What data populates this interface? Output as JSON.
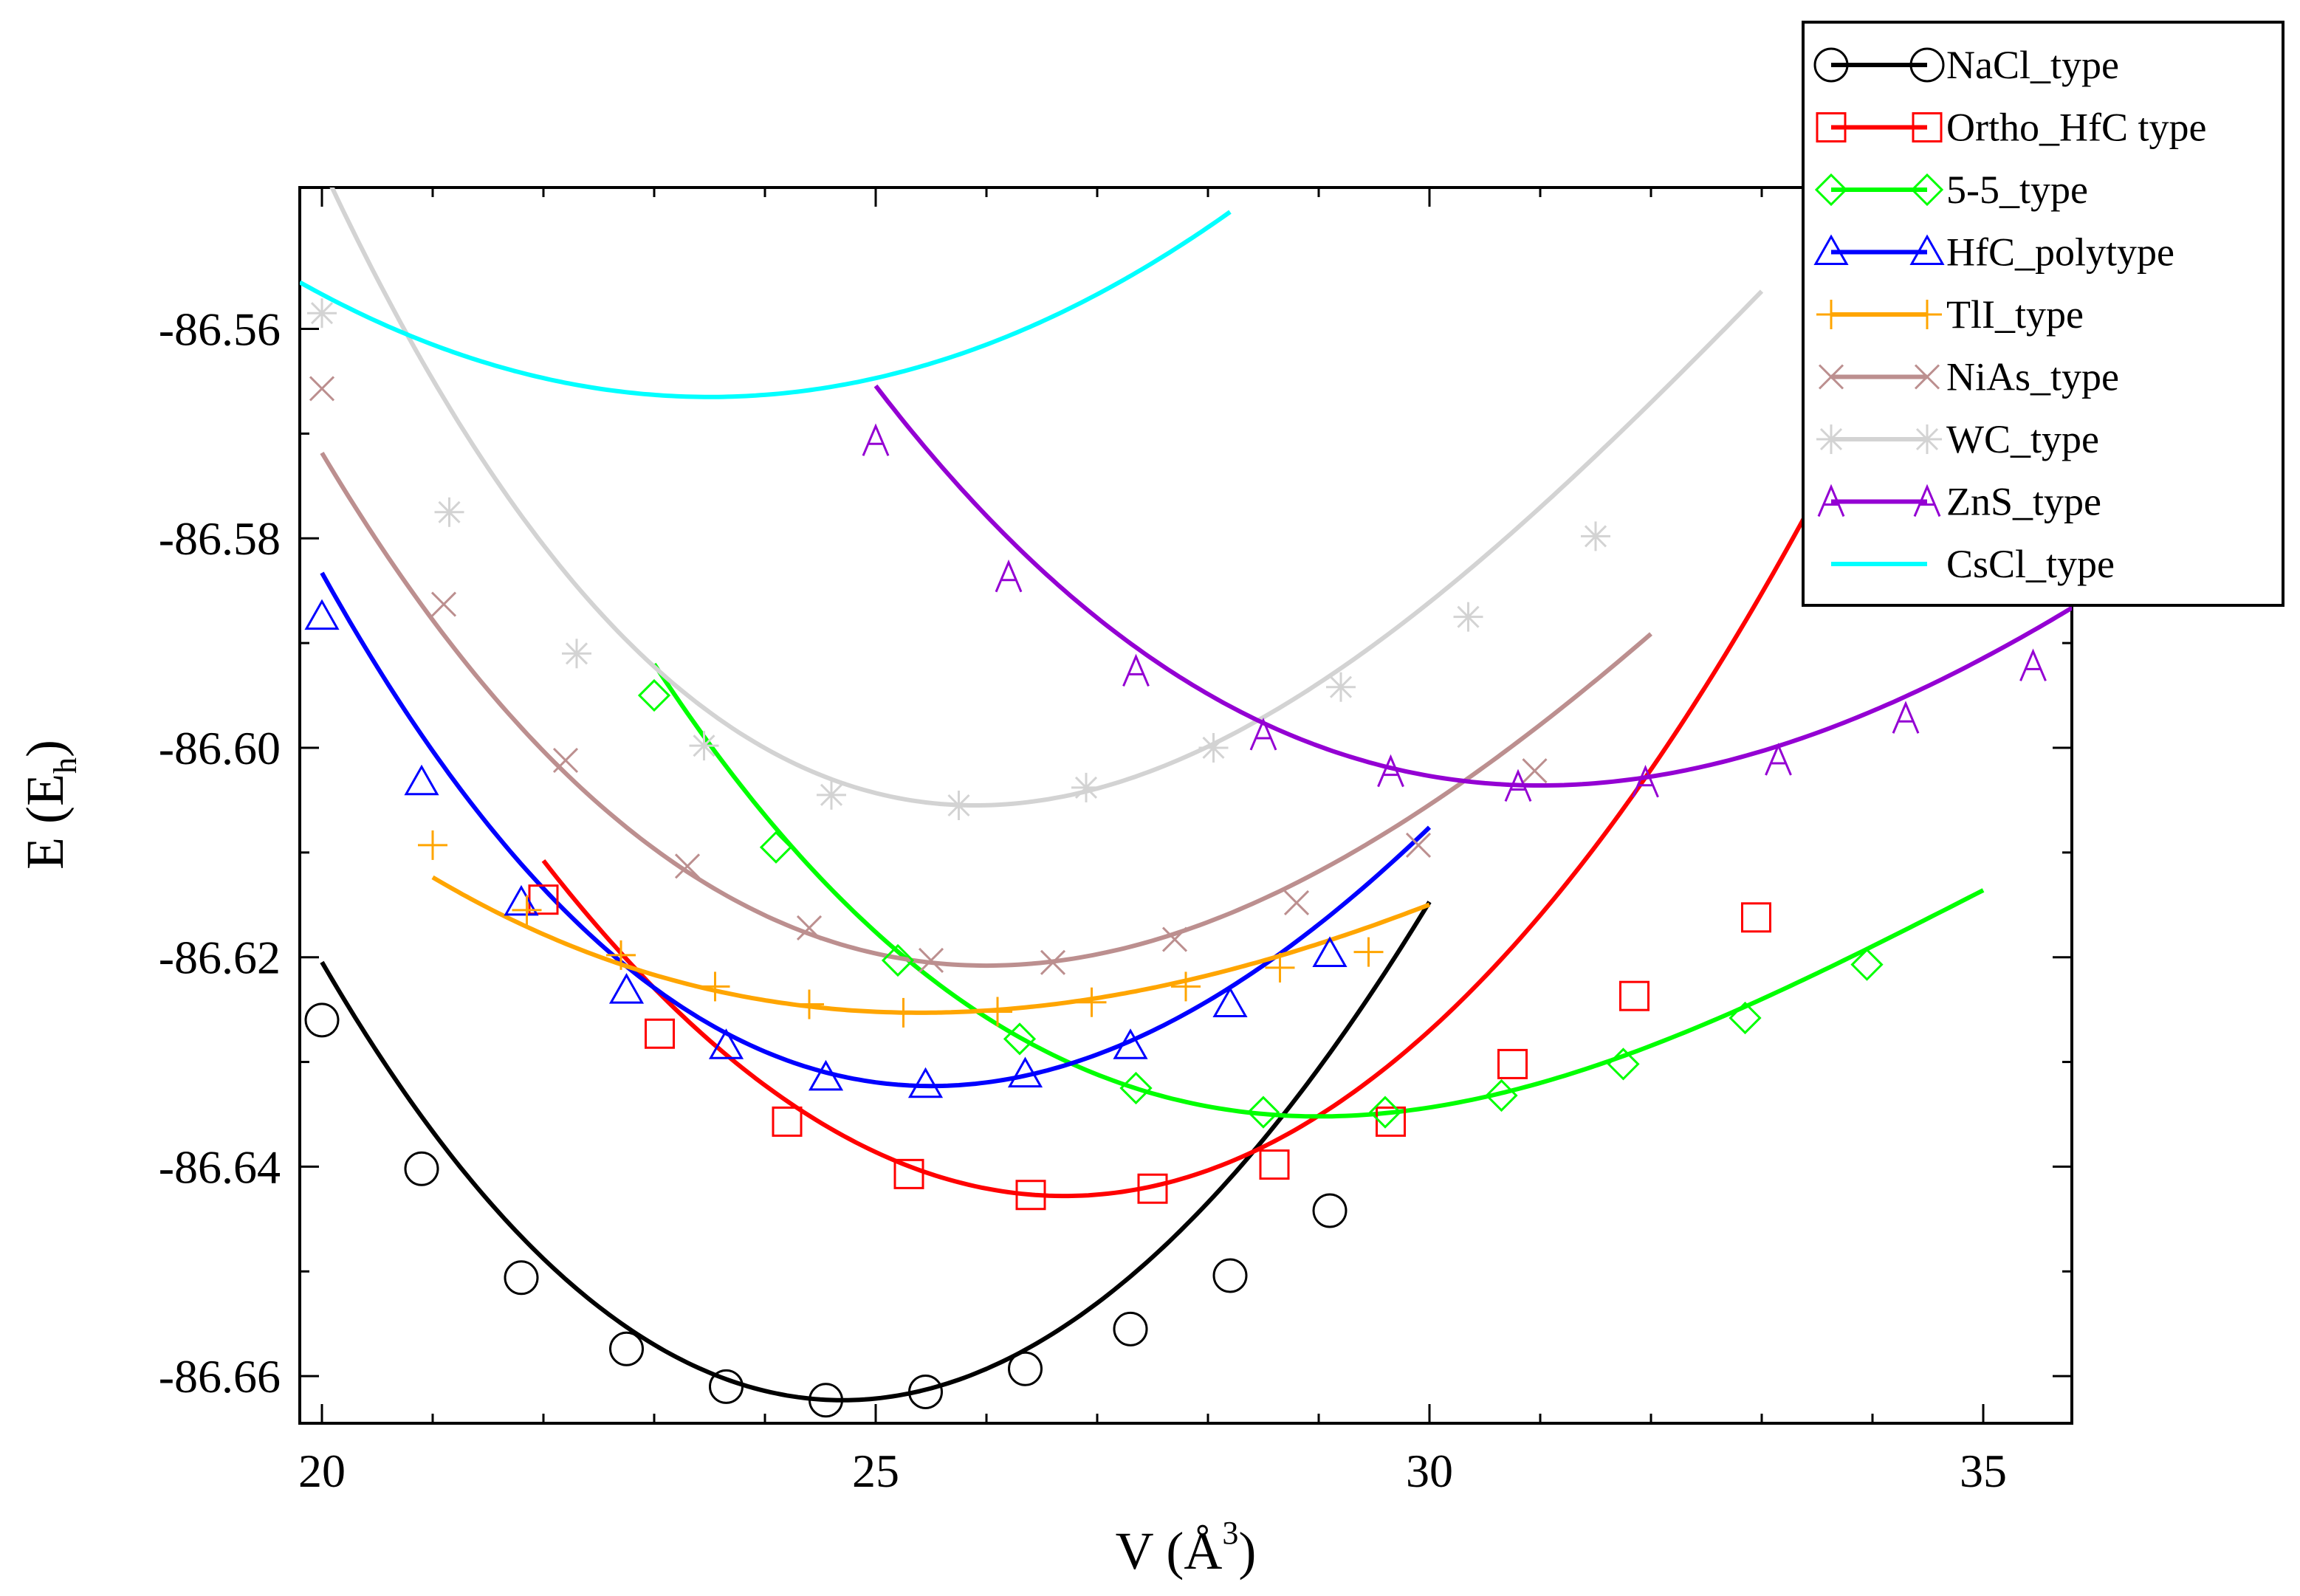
{
  "chart_data": {
    "type": "line",
    "title": "",
    "xlabel": "V (Å",
    "xlabel_sup": "3",
    "xlabel_close": ")",
    "ylabel": "E (E",
    "ylabel_sub": "h",
    "ylabel_close": ")",
    "xlim": [
      19.8,
      35.8
    ],
    "ylim": [
      -86.6645,
      -86.5465
    ],
    "xticks": [
      20,
      25,
      30,
      35
    ],
    "xtick_labels": [
      "20",
      "25",
      "30",
      "35"
    ],
    "yticks": [
      -86.66,
      -86.64,
      -86.62,
      -86.6,
      -86.58,
      -86.56
    ],
    "ytick_labels": [
      "-86.66",
      "-86.64",
      "-86.62",
      "-86.60",
      "-86.58",
      "-86.56"
    ],
    "legend_position": "top-right",
    "series": [
      {
        "name": "NaCl_type",
        "color": "#000000",
        "marker": "circle",
        "fit": {
          "x0": 24.7,
          "e0": -86.6623,
          "k": 0.0018,
          "c": -2e-05,
          "xmin": 20.0,
          "xmax": 30.0
        },
        "points": [
          [
            20.0,
            -86.626
          ],
          [
            20.9,
            -86.6402
          ],
          [
            21.8,
            -86.6506
          ],
          [
            22.75,
            -86.6574
          ],
          [
            23.65,
            -86.661
          ],
          [
            24.55,
            -86.6623
          ],
          [
            25.45,
            -86.6615
          ],
          [
            26.35,
            -86.6593
          ],
          [
            27.3,
            -86.6555
          ],
          [
            28.2,
            -86.6504
          ],
          [
            29.1,
            -86.6442
          ]
        ]
      },
      {
        "name": "Ortho_HfC type",
        "color": "#ff0000",
        "marker": "square",
        "fit": {
          "x0": 26.7,
          "e0": -86.6428,
          "k": 0.00145,
          "c": 0.0,
          "xmin": 22.0,
          "xmax": 34.0
        },
        "points": [
          [
            22.0,
            -86.6145
          ],
          [
            23.05,
            -86.6273
          ],
          [
            24.2,
            -86.6357
          ],
          [
            25.3,
            -86.6407
          ],
          [
            26.4,
            -86.6427
          ],
          [
            27.5,
            -86.6421
          ],
          [
            28.6,
            -86.6398
          ],
          [
            29.65,
            -86.6357
          ],
          [
            30.75,
            -86.6302
          ],
          [
            31.85,
            -86.6237
          ],
          [
            32.95,
            -86.6162
          ]
        ]
      },
      {
        "name": "5-5_type",
        "color": "#00ff00",
        "marker": "diamond",
        "fit": {
          "x0": 29.0,
          "e0": -86.6352,
          "k": 0.0009,
          "c": -5e-05,
          "xmin": 23.0,
          "xmax": 35.0
        },
        "points": [
          [
            23.0,
            -86.595
          ],
          [
            24.1,
            -86.6095
          ],
          [
            25.2,
            -86.6203
          ],
          [
            26.3,
            -86.6278
          ],
          [
            27.35,
            -86.6325
          ],
          [
            28.5,
            -86.6348
          ],
          [
            29.6,
            -86.6348
          ],
          [
            30.65,
            -86.6332
          ],
          [
            31.75,
            -86.6302
          ],
          [
            32.85,
            -86.6258
          ],
          [
            33.95,
            -86.6207
          ]
        ]
      },
      {
        "name": "HfC_polytype",
        "color": "#0000ff",
        "marker": "triangle",
        "fit": {
          "x0": 25.5,
          "e0": -86.6323,
          "k": 0.0014,
          "c": -4e-05,
          "xmin": 20.0,
          "xmax": 30.0
        },
        "points": [
          [
            20.0,
            -86.5875
          ],
          [
            20.9,
            -86.6033
          ],
          [
            21.8,
            -86.6148
          ],
          [
            22.75,
            -86.6232
          ],
          [
            23.65,
            -86.6285
          ],
          [
            24.55,
            -86.6315
          ],
          [
            25.45,
            -86.6322
          ],
          [
            26.35,
            -86.6312
          ],
          [
            27.3,
            -86.6285
          ],
          [
            28.2,
            -86.6245
          ],
          [
            29.1,
            -86.6197
          ]
        ]
      },
      {
        "name": "TlI_type",
        "color": "#ffa500",
        "marker": "plus",
        "fit": {
          "x0": 25.4,
          "e0": -86.6253,
          "k": 0.00058,
          "c": -2e-05,
          "xmin": 21.0,
          "xmax": 30.0
        },
        "points": [
          [
            21.0,
            -86.6093
          ],
          [
            21.85,
            -86.6155
          ],
          [
            22.7,
            -86.6198
          ],
          [
            23.55,
            -86.6228
          ],
          [
            24.4,
            -86.6245
          ],
          [
            25.25,
            -86.6253
          ],
          [
            26.1,
            -86.6252
          ],
          [
            26.95,
            -86.6243
          ],
          [
            27.8,
            -86.6228
          ],
          [
            28.65,
            -86.621
          ],
          [
            29.45,
            -86.6195
          ]
        ]
      },
      {
        "name": "NiAs_type",
        "color": "#bc8f8f",
        "marker": "cross",
        "fit": {
          "x0": 26.0,
          "e0": -86.6208,
          "k": 0.00112,
          "c": -4e-05,
          "xmin": 20.0,
          "xmax": 32.0
        },
        "points": [
          [
            20.0,
            -86.5657
          ],
          [
            21.1,
            -86.5863
          ],
          [
            22.2,
            -86.6012
          ],
          [
            23.3,
            -86.6113
          ],
          [
            24.4,
            -86.6172
          ],
          [
            25.5,
            -86.6203
          ],
          [
            26.6,
            -86.6205
          ],
          [
            27.7,
            -86.6183
          ],
          [
            28.8,
            -86.6148
          ],
          [
            29.9,
            -86.6093
          ],
          [
            30.95,
            -86.6022
          ]
        ]
      },
      {
        "name": "WC_type",
        "color": "#d3d3d3",
        "marker": "star",
        "fit": {
          "x0": 25.9,
          "e0": -86.6055,
          "k": 0.0014,
          "c": -6e-05,
          "xmin": 20.0,
          "xmax": 33.0
        },
        "points": [
          [
            20.0,
            -86.5585
          ],
          [
            21.15,
            -86.5775
          ],
          [
            22.3,
            -86.591
          ],
          [
            23.45,
            -86.5998
          ],
          [
            24.6,
            -86.6045
          ],
          [
            25.75,
            -86.6055
          ],
          [
            26.9,
            -86.6038
          ],
          [
            28.05,
            -86.6
          ],
          [
            29.2,
            -86.5942
          ],
          [
            30.35,
            -86.5875
          ],
          [
            31.5,
            -86.5798
          ]
        ]
      },
      {
        "name": "ZnS_type",
        "color": "#9400d3",
        "marker": "A",
        "fit": {
          "x0": 31.0,
          "e0": -86.6036,
          "k": 0.00088,
          "c": -3e-05,
          "xmin": 25.0,
          "xmax": 36.0
        },
        "points": [
          [
            25.0,
            -86.5707
          ],
          [
            26.2,
            -86.5837
          ],
          [
            27.35,
            -86.5927
          ],
          [
            28.5,
            -86.5988
          ],
          [
            29.65,
            -86.6023
          ],
          [
            30.8,
            -86.6037
          ],
          [
            31.95,
            -86.6033
          ],
          [
            33.15,
            -86.6012
          ],
          [
            34.3,
            -86.5972
          ],
          [
            35.45,
            -86.5922
          ]
        ]
      },
      {
        "name": "CsCl_type",
        "color": "#00ffff",
        "marker": "none",
        "fit": {
          "x0": 23.5,
          "e0": -86.5665,
          "k": 0.0008,
          "c": 0.0,
          "xmin": 19.8,
          "xmax": 28.2
        },
        "points": []
      }
    ]
  }
}
